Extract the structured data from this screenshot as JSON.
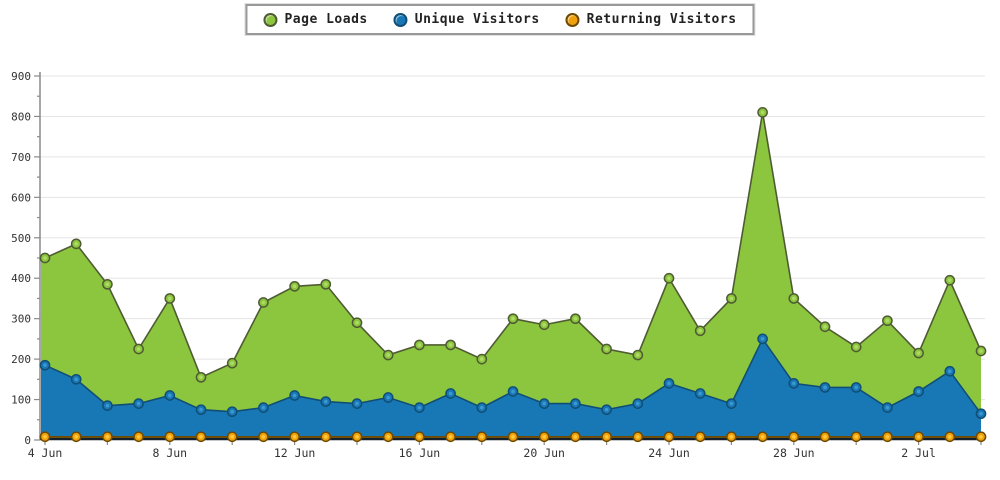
{
  "chart_data": {
    "type": "area",
    "title": "",
    "xlabel": "",
    "ylabel": "",
    "ylim": [
      0,
      900
    ],
    "y_major_step": 100,
    "y_minor_step": 50,
    "grid": true,
    "legend_position": "top-center",
    "x_label_indices": [
      0,
      4,
      8,
      12,
      16,
      20,
      24,
      28
    ],
    "x_labels_shown": [
      "4 Jun",
      "8 Jun",
      "12 Jun",
      "16 Jun",
      "20 Jun",
      "24 Jun",
      "28 Jun",
      "2 Jul"
    ],
    "x_minor_tick_step": 2,
    "dates": [
      "4 Jun",
      "5 Jun",
      "6 Jun",
      "7 Jun",
      "8 Jun",
      "9 Jun",
      "10 Jun",
      "11 Jun",
      "12 Jun",
      "13 Jun",
      "14 Jun",
      "15 Jun",
      "16 Jun",
      "17 Jun",
      "18 Jun",
      "19 Jun",
      "20 Jun",
      "21 Jun",
      "22 Jun",
      "23 Jun",
      "24 Jun",
      "25 Jun",
      "26 Jun",
      "27 Jun",
      "28 Jun",
      "29 Jun",
      "30 Jun",
      "1 Jul",
      "2 Jul",
      "3 Jul",
      "4 Jul"
    ],
    "series": [
      {
        "name": "Page Loads",
        "color": "#8CC63E",
        "line_color": "#4F5B33",
        "marker_center": "#AEDB66",
        "values": [
          450,
          485,
          385,
          225,
          350,
          155,
          190,
          340,
          380,
          385,
          290,
          210,
          235,
          235,
          200,
          300,
          285,
          300,
          225,
          210,
          400,
          270,
          350,
          810,
          350,
          280,
          230,
          295,
          215,
          395,
          220
        ]
      },
      {
        "name": "Unique Visitors",
        "color": "#1878B6",
        "line_color": "#114E75",
        "marker_center": "#3D97D0",
        "values": [
          185,
          150,
          85,
          90,
          110,
          75,
          70,
          80,
          110,
          95,
          90,
          105,
          80,
          115,
          80,
          120,
          90,
          90,
          75,
          90,
          140,
          115,
          90,
          250,
          140,
          130,
          130,
          80,
          120,
          170,
          65
        ]
      },
      {
        "name": "Returning Visitors",
        "color": "#EFA20C",
        "line_color": "#6E4A00",
        "marker_center": "#FFC83D",
        "values": [
          8,
          8,
          8,
          8,
          8,
          8,
          8,
          8,
          8,
          8,
          8,
          8,
          8,
          8,
          8,
          8,
          8,
          8,
          8,
          8,
          8,
          8,
          8,
          8,
          8,
          8,
          8,
          8,
          8,
          8,
          8
        ]
      }
    ],
    "axis_colors": {
      "grid": "#E5E5E5",
      "y_axis": "#8A8A8A",
      "x_axis": "#14212C",
      "tick": "#8A8A8A",
      "label": "#333333"
    }
  }
}
